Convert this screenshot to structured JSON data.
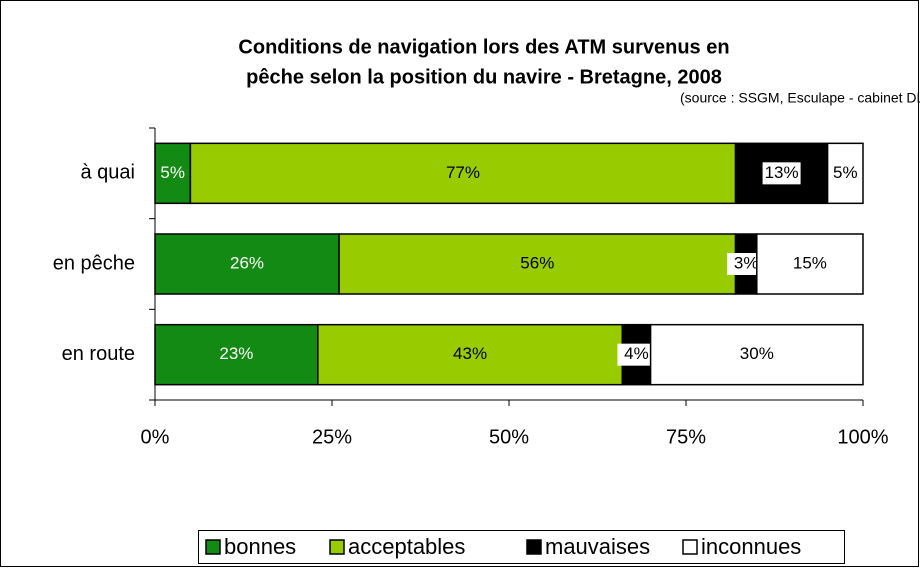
{
  "chart_data": {
    "type": "bar",
    "orientation": "horizontal",
    "stacked": true,
    "title": [
      "Conditions de navigation lors des ATM  survenus en",
      "pêche selon la position du navire - Bretagne, 2008"
    ],
    "subtitle": "(source : SSGM, Esculape - cabinet DL-EES",
    "categories": [
      "à quai",
      "en pêche",
      "en route"
    ],
    "series": [
      {
        "name": "bonnes",
        "color": "#138a13",
        "label_color": "#ffffff",
        "values": [
          5,
          26,
          23
        ],
        "value_labels": [
          "5%",
          "26%",
          "23%"
        ]
      },
      {
        "name": "acceptables",
        "color": "#99cc00",
        "label_color": "#000000",
        "values": [
          77,
          56,
          43
        ],
        "value_labels": [
          "77%",
          "56%",
          "43%"
        ]
      },
      {
        "name": "mauvaises",
        "color": "#000000",
        "label_color": "#000000",
        "values": [
          13,
          3,
          4
        ],
        "value_labels": [
          "13%",
          "3%",
          "4%"
        ]
      },
      {
        "name": "inconnues",
        "color": "#ffffff",
        "label_color": "#000000",
        "values": [
          5,
          15,
          30
        ],
        "value_labels": [
          "5%",
          "15%",
          "30%"
        ]
      }
    ],
    "xlim": [
      0,
      100
    ],
    "xticks": [
      {
        "value": 0,
        "label": "0%"
      },
      {
        "value": 25,
        "label": "25%"
      },
      {
        "value": 50,
        "label": "50%"
      },
      {
        "value": 75,
        "label": "75%"
      },
      {
        "value": 100,
        "label": "100%"
      }
    ],
    "grid": false,
    "legend": "bottom"
  }
}
